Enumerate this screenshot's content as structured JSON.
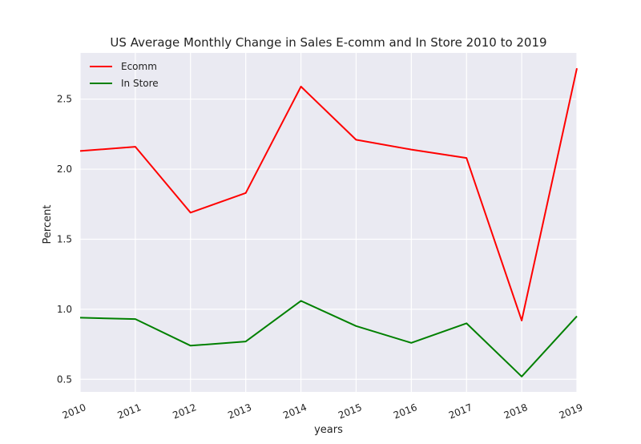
{
  "chart_data": {
    "type": "line",
    "title": "US Average Monthly Change in Sales E-comm and In Store 2010 to 2019",
    "xlabel": "years",
    "ylabel": "Percent",
    "x": [
      "2010",
      "2011",
      "2012",
      "2013",
      "2014",
      "2015",
      "2016",
      "2017",
      "2018",
      "2019"
    ],
    "xlim": [
      2010,
      2019
    ],
    "ylim": [
      0.41,
      2.83
    ],
    "yticks": [
      0.5,
      1.0,
      1.5,
      2.0,
      2.5
    ],
    "ytick_labels": [
      "0.5",
      "1.0",
      "1.5",
      "2.0",
      "2.5"
    ],
    "grid": true,
    "legend_position": "top-left",
    "series": [
      {
        "name": "Ecomm",
        "color": "#ff0000",
        "values": [
          2.13,
          2.16,
          1.69,
          1.83,
          2.59,
          2.21,
          2.14,
          2.08,
          0.92,
          2.72
        ]
      },
      {
        "name": "In Store",
        "color": "#008000",
        "values": [
          0.94,
          0.93,
          0.74,
          0.77,
          1.06,
          0.88,
          0.76,
          0.9,
          0.52,
          0.95
        ]
      }
    ],
    "colors": {
      "plot_bg": "#eaeaf2",
      "grid": "#ffffff",
      "text": "#222222"
    }
  }
}
